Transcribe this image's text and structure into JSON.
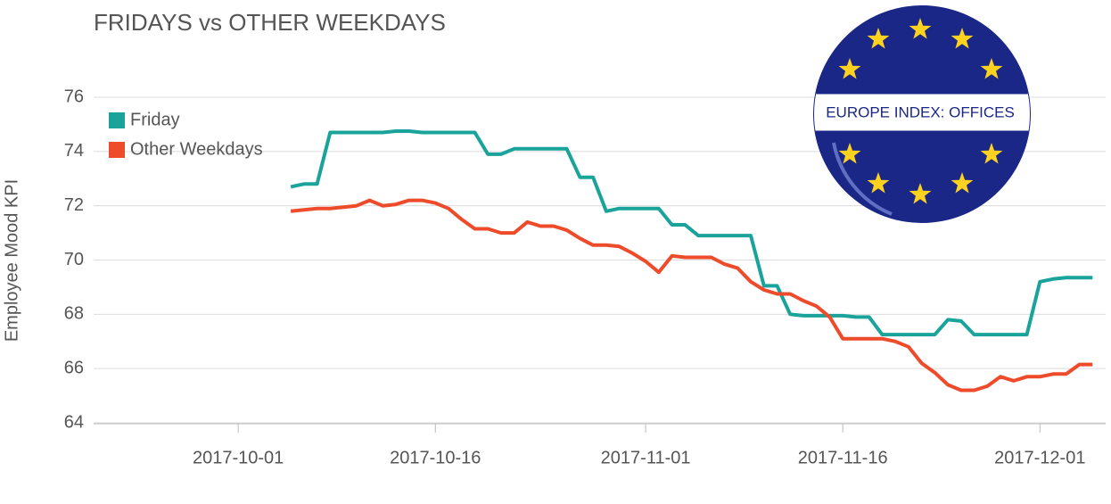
{
  "chart_data": {
    "type": "line",
    "title": "FRIDAYS vs OTHER WEEKDAYS",
    "y_label": "Employee Mood KPI",
    "annotation": "EUROPE INDEX: OFFICES",
    "x": [
      "2017-10-05",
      "2017-10-06",
      "2017-10-07",
      "2017-10-08",
      "2017-10-09",
      "2017-10-10",
      "2017-10-11",
      "2017-10-12",
      "2017-10-13",
      "2017-10-14",
      "2017-10-15",
      "2017-10-16",
      "2017-10-17",
      "2017-10-18",
      "2017-10-19",
      "2017-10-20",
      "2017-10-21",
      "2017-10-22",
      "2017-10-23",
      "2017-10-24",
      "2017-10-25",
      "2017-10-26",
      "2017-10-27",
      "2017-10-28",
      "2017-10-29",
      "2017-10-30",
      "2017-10-31",
      "2017-11-01",
      "2017-11-02",
      "2017-11-03",
      "2017-11-04",
      "2017-11-05",
      "2017-11-06",
      "2017-11-07",
      "2017-11-08",
      "2017-11-09",
      "2017-11-10",
      "2017-11-11",
      "2017-11-12",
      "2017-11-13",
      "2017-11-14",
      "2017-11-15",
      "2017-11-16",
      "2017-11-17",
      "2017-11-18",
      "2017-11-19",
      "2017-11-20",
      "2017-11-21",
      "2017-11-22",
      "2017-11-23",
      "2017-11-24",
      "2017-11-25",
      "2017-11-26",
      "2017-11-27",
      "2017-11-28",
      "2017-11-29",
      "2017-11-30",
      "2017-12-01",
      "2017-12-02",
      "2017-12-03",
      "2017-12-04",
      "2017-12-05"
    ],
    "series": [
      {
        "name": "Friday",
        "color": "#1aa39b",
        "values": [
          72.7,
          72.8,
          72.8,
          74.7,
          74.7,
          74.7,
          74.7,
          74.7,
          74.75,
          74.75,
          74.7,
          74.7,
          74.7,
          74.7,
          74.7,
          73.9,
          73.9,
          74.1,
          74.1,
          74.1,
          74.1,
          74.1,
          73.05,
          73.05,
          71.8,
          71.9,
          71.9,
          71.9,
          71.9,
          71.3,
          71.3,
          70.9,
          70.9,
          70.9,
          70.9,
          70.9,
          69.05,
          69.05,
          68.0,
          67.95,
          67.95,
          67.95,
          67.95,
          67.9,
          67.9,
          67.25,
          67.25,
          67.25,
          67.25,
          67.25,
          67.8,
          67.75,
          67.25,
          67.25,
          67.25,
          67.25,
          67.25,
          69.2,
          69.3,
          69.35,
          69.35,
          69.35
        ]
      },
      {
        "name": "Other Weekdays",
        "color": "#ee4b2b",
        "values": [
          71.8,
          71.85,
          71.9,
          71.9,
          71.95,
          72.0,
          72.2,
          72.0,
          72.05,
          72.2,
          72.2,
          72.1,
          71.9,
          71.5,
          71.15,
          71.15,
          71.0,
          71.0,
          71.4,
          71.25,
          71.25,
          71.1,
          70.8,
          70.55,
          70.55,
          70.5,
          70.25,
          69.95,
          69.55,
          70.15,
          70.1,
          70.1,
          70.1,
          69.85,
          69.7,
          69.2,
          68.9,
          68.75,
          68.75,
          68.5,
          68.3,
          67.9,
          67.1,
          67.1,
          67.1,
          67.1,
          67.0,
          66.8,
          66.2,
          65.85,
          65.4,
          65.2,
          65.2,
          65.35,
          65.7,
          65.55,
          65.7,
          65.7,
          65.8,
          65.8,
          66.15,
          66.15
        ]
      }
    ],
    "xlim": [
      "2017-09-20",
      "2017-12-06"
    ],
    "xticks": [
      "2017-10-01",
      "2017-10-16",
      "2017-11-01",
      "2017-11-16",
      "2017-12-01"
    ],
    "ylim": [
      64,
      76
    ],
    "yticks": [
      64,
      66,
      68,
      70,
      72,
      74,
      76
    ],
    "grid": true,
    "legend": "upper left"
  }
}
